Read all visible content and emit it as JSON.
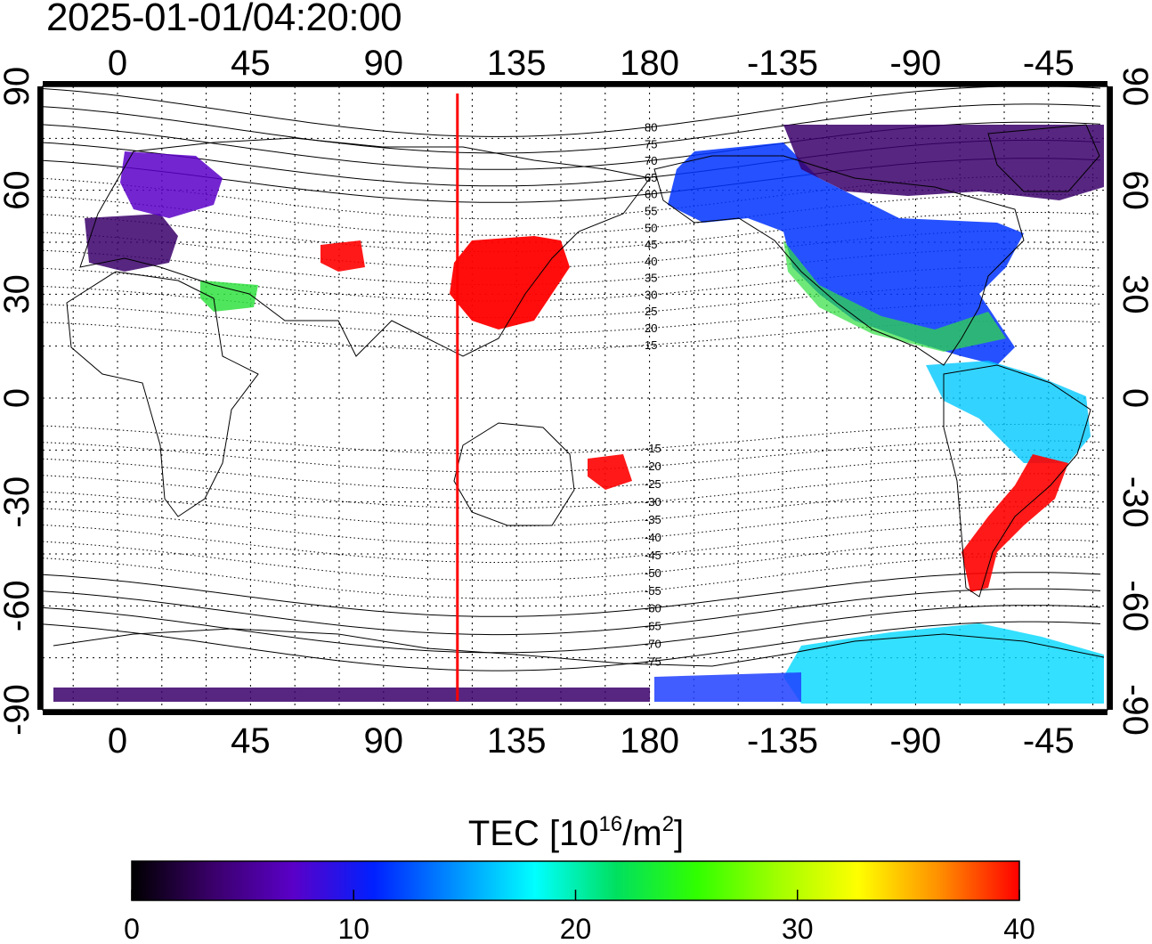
{
  "timestamp": "2025-01-01/04:20:00",
  "map": {
    "lon_ticks": [
      "0",
      "45",
      "90",
      "135",
      "180",
      "-135",
      "-90",
      "-45"
    ],
    "lat_ticks": [
      "90",
      "60",
      "30",
      "0",
      "-30",
      "-60",
      "-90"
    ],
    "meridian_marker_lon": 115,
    "meridian_marker_color": "#ff0000",
    "contour_labels": [
      "80",
      "75",
      "70",
      "65",
      "60",
      "55",
      "50",
      "45",
      "40",
      "35",
      "30",
      "25",
      "20",
      "15",
      "-15",
      "-20",
      "-25",
      "-30",
      "-35",
      "-40",
      "-45",
      "-50",
      "-55",
      "-60",
      "-65",
      "-70",
      "-75"
    ],
    "grid": "dotted"
  },
  "colorbar": {
    "title_prefix": "TEC  [10",
    "title_exp1": "16",
    "title_mid": "/m",
    "title_exp2": "2",
    "title_suffix": "]",
    "tick_labels": [
      "0",
      "10",
      "20",
      "30",
      "40"
    ],
    "min": 0,
    "max": 40,
    "colors": [
      "#000000",
      "#3a006a",
      "#5a00c8",
      "#0020ff",
      "#0090ff",
      "#00ffff",
      "#00e060",
      "#30ff00",
      "#a0ff00",
      "#ffff00",
      "#ff9000",
      "#ff0000"
    ]
  }
}
